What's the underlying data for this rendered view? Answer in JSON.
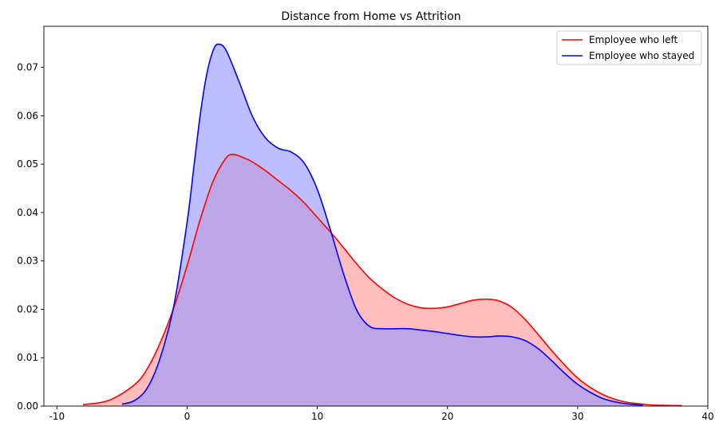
{
  "chart_data": {
    "type": "area",
    "title": "Distance from Home vs Attrition",
    "xlabel": "",
    "ylabel": "",
    "xlim": [
      -11,
      40
    ],
    "ylim": [
      0,
      0.0785
    ],
    "xticks": [
      -10,
      0,
      10,
      20,
      30,
      40
    ],
    "yticks": [
      0.0,
      0.01,
      0.02,
      0.03,
      0.04,
      0.05,
      0.06,
      0.07
    ],
    "ytick_labels": [
      "0.00",
      "0.01",
      "0.02",
      "0.03",
      "0.04",
      "0.05",
      "0.06",
      "0.07"
    ],
    "grid": false,
    "legend_position": "top-right",
    "series": [
      {
        "name": "Employee who left",
        "color": "#ff0000",
        "fill": "#ff9999",
        "points": [
          [
            -8,
            0.0003
          ],
          [
            -6,
            0.0012
          ],
          [
            -4,
            0.0045
          ],
          [
            -3,
            0.008
          ],
          [
            -2,
            0.0135
          ],
          [
            -1,
            0.0205
          ],
          [
            0,
            0.029
          ],
          [
            1,
            0.0385
          ],
          [
            2,
            0.0465
          ],
          [
            3,
            0.0513
          ],
          [
            3.5,
            0.052
          ],
          [
            4,
            0.0517
          ],
          [
            5,
            0.0505
          ],
          [
            6,
            0.0487
          ],
          [
            7,
            0.0466
          ],
          [
            8,
            0.0445
          ],
          [
            9,
            0.042
          ],
          [
            10,
            0.039
          ],
          [
            11,
            0.036
          ],
          [
            12,
            0.0328
          ],
          [
            13,
            0.0295
          ],
          [
            14,
            0.0265
          ],
          [
            15,
            0.0242
          ],
          [
            16,
            0.0223
          ],
          [
            17,
            0.021
          ],
          [
            18,
            0.0203
          ],
          [
            19,
            0.0202
          ],
          [
            20,
            0.0205
          ],
          [
            21,
            0.0212
          ],
          [
            22,
            0.0219
          ],
          [
            23,
            0.0221
          ],
          [
            24,
            0.0217
          ],
          [
            25,
            0.0203
          ],
          [
            26,
            0.0178
          ],
          [
            27,
            0.0147
          ],
          [
            28,
            0.0115
          ],
          [
            29,
            0.0085
          ],
          [
            30,
            0.0058
          ],
          [
            31,
            0.0038
          ],
          [
            32,
            0.0023
          ],
          [
            33,
            0.0013
          ],
          [
            34,
            0.0007
          ],
          [
            35,
            0.0004
          ],
          [
            36,
            0.0002
          ],
          [
            38,
            0.0001
          ]
        ]
      },
      {
        "name": "Employee who stayed",
        "color": "#0000ff",
        "fill": "#9999ff",
        "points": [
          [
            -5,
            0.0004
          ],
          [
            -4,
            0.0012
          ],
          [
            -3,
            0.004
          ],
          [
            -2,
            0.0105
          ],
          [
            -1,
            0.021
          ],
          [
            0,
            0.038
          ],
          [
            0.5,
            0.049
          ],
          [
            1,
            0.06
          ],
          [
            1.5,
            0.0685
          ],
          [
            2,
            0.0735
          ],
          [
            2.4,
            0.0748
          ],
          [
            3,
            0.0735
          ],
          [
            4,
            0.067
          ],
          [
            5,
            0.06
          ],
          [
            6,
            0.0555
          ],
          [
            7,
            0.0533
          ],
          [
            8,
            0.0525
          ],
          [
            9,
            0.0502
          ],
          [
            10,
            0.0448
          ],
          [
            11,
            0.0365
          ],
          [
            12,
            0.0275
          ],
          [
            13,
            0.02
          ],
          [
            14,
            0.0165
          ],
          [
            15,
            0.016
          ],
          [
            16,
            0.016
          ],
          [
            17,
            0.016
          ],
          [
            18,
            0.0157
          ],
          [
            19,
            0.0154
          ],
          [
            20,
            0.015
          ],
          [
            21,
            0.0146
          ],
          [
            22,
            0.0143
          ],
          [
            23,
            0.0143
          ],
          [
            24,
            0.0145
          ],
          [
            25,
            0.0143
          ],
          [
            26,
            0.0135
          ],
          [
            27,
            0.0118
          ],
          [
            28,
            0.0094
          ],
          [
            29,
            0.0068
          ],
          [
            30,
            0.0045
          ],
          [
            31,
            0.0028
          ],
          [
            32,
            0.0015
          ],
          [
            33,
            0.0008
          ],
          [
            34,
            0.0004
          ],
          [
            35,
            0.0002
          ]
        ]
      }
    ]
  }
}
